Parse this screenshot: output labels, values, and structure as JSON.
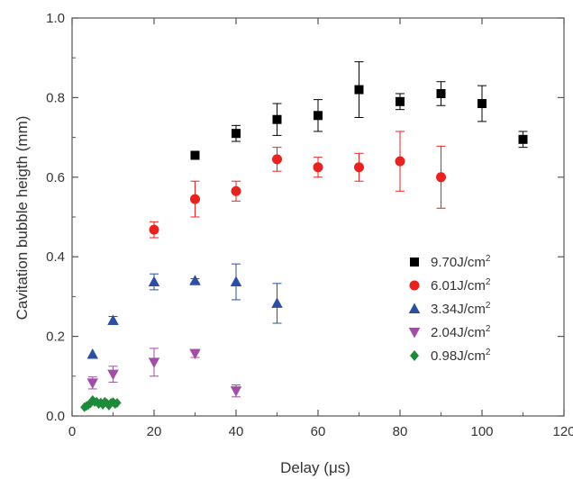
{
  "chart_data": {
    "type": "scatter",
    "xlabel": "Delay (μs)",
    "ylabel": "Cavitation bubble heigth (mm)",
    "xlim": [
      0,
      120
    ],
    "ylim": [
      0,
      1.0
    ],
    "x_ticks": [
      "0",
      "20",
      "40",
      "60",
      "80",
      "100",
      "120"
    ],
    "y_ticks": [
      "0.0",
      "0.2",
      "0.4",
      "0.6",
      "0.8",
      "1.0"
    ],
    "grid": false,
    "legend_position": "right",
    "error_bars": true,
    "series": [
      {
        "name": "9.70J/cm",
        "name_sup": "2",
        "marker": "square",
        "color": "#000000",
        "points": [
          {
            "x": 30,
            "y": 0.655,
            "err": 0.01
          },
          {
            "x": 40,
            "y": 0.71,
            "err": 0.02
          },
          {
            "x": 50,
            "y": 0.745,
            "err": 0.04
          },
          {
            "x": 60,
            "y": 0.755,
            "err": 0.04
          },
          {
            "x": 70,
            "y": 0.82,
            "err": 0.07
          },
          {
            "x": 80,
            "y": 0.79,
            "err": 0.02
          },
          {
            "x": 90,
            "y": 0.81,
            "err": 0.03
          },
          {
            "x": 100,
            "y": 0.785,
            "err": 0.045
          },
          {
            "x": 110,
            "y": 0.695,
            "err": 0.02
          }
        ]
      },
      {
        "name": "6.01J/cm",
        "name_sup": "2",
        "marker": "circle",
        "color": "#e8231f",
        "points": [
          {
            "x": 20,
            "y": 0.468,
            "err": 0.02
          },
          {
            "x": 30,
            "y": 0.545,
            "err": 0.045
          },
          {
            "x": 40,
            "y": 0.565,
            "err": 0.025
          },
          {
            "x": 50,
            "y": 0.645,
            "err": 0.03
          },
          {
            "x": 60,
            "y": 0.625,
            "err": 0.025
          },
          {
            "x": 70,
            "y": 0.625,
            "err": 0.035
          },
          {
            "x": 80,
            "y": 0.64,
            "err": 0.075
          },
          {
            "x": 90,
            "y": 0.6,
            "err": 0.078
          }
        ]
      },
      {
        "name": "3.34J/cm",
        "name_sup": "2",
        "marker": "triangle-up",
        "color": "#2c4fa3",
        "points": [
          {
            "x": 5,
            "y": 0.155,
            "err": 0
          },
          {
            "x": 10,
            "y": 0.24,
            "err": 0.01
          },
          {
            "x": 20,
            "y": 0.337,
            "err": 0.02
          },
          {
            "x": 30,
            "y": 0.34,
            "err": 0.005
          },
          {
            "x": 40,
            "y": 0.337,
            "err": 0.045
          },
          {
            "x": 50,
            "y": 0.283,
            "err": 0.05
          }
        ]
      },
      {
        "name": "2.04J/cm",
        "name_sup": "2",
        "marker": "triangle-down",
        "color": "#a24da6",
        "points": [
          {
            "x": 5,
            "y": 0.083,
            "err": 0.015
          },
          {
            "x": 10,
            "y": 0.105,
            "err": 0.02
          },
          {
            "x": 20,
            "y": 0.135,
            "err": 0.035
          },
          {
            "x": 30,
            "y": 0.157,
            "err": 0.01
          },
          {
            "x": 40,
            "y": 0.063,
            "err": 0.015
          }
        ]
      },
      {
        "name": "0.98J/cm",
        "name_sup": "2",
        "marker": "diamond",
        "color": "#1f8a3a",
        "points": [
          {
            "x": 3,
            "y": 0.022,
            "err": 0
          },
          {
            "x": 3.5,
            "y": 0.025,
            "err": 0
          },
          {
            "x": 4,
            "y": 0.028,
            "err": 0
          },
          {
            "x": 4.5,
            "y": 0.032,
            "err": 0
          },
          {
            "x": 5,
            "y": 0.04,
            "err": 0
          },
          {
            "x": 5.5,
            "y": 0.035,
            "err": 0
          },
          {
            "x": 6,
            "y": 0.036,
            "err": 0
          },
          {
            "x": 6.5,
            "y": 0.03,
            "err": 0
          },
          {
            "x": 7,
            "y": 0.034,
            "err": 0
          },
          {
            "x": 7.5,
            "y": 0.028,
            "err": 0
          },
          {
            "x": 8,
            "y": 0.036,
            "err": 0
          },
          {
            "x": 8.5,
            "y": 0.032,
            "err": 0
          },
          {
            "x": 9,
            "y": 0.026,
            "err": 0
          },
          {
            "x": 9.5,
            "y": 0.033,
            "err": 0
          },
          {
            "x": 10,
            "y": 0.035,
            "err": 0
          },
          {
            "x": 10.5,
            "y": 0.03,
            "err": 0
          },
          {
            "x": 11,
            "y": 0.033,
            "err": 0
          }
        ]
      }
    ]
  }
}
